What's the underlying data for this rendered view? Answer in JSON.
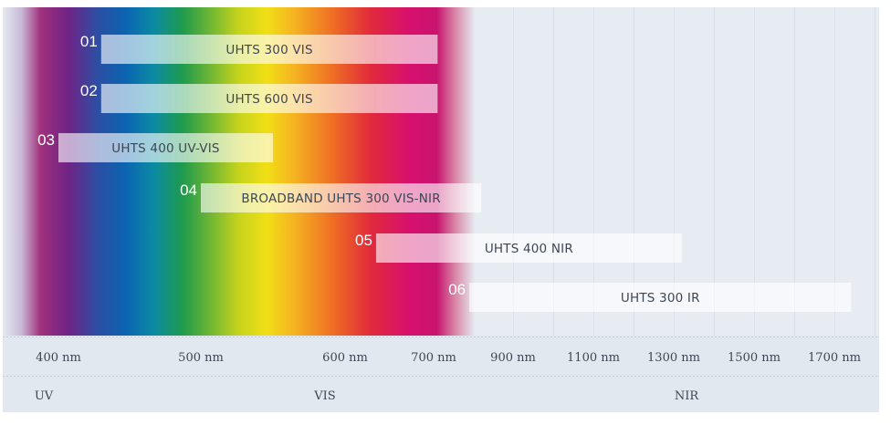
{
  "chart_data": {
    "type": "bar",
    "orientation": "horizontal-range",
    "x_ticks": [
      "400 nm",
      "500 nm",
      "600 nm",
      "700 nm",
      "900 nm",
      "1100 nm",
      "1300 nm",
      "1500 nm",
      "1700 nm"
    ],
    "regions": [
      {
        "label": "UV",
        "range_nm": [
          350,
          400
        ]
      },
      {
        "label": "VIS",
        "range_nm": [
          400,
          750
        ]
      },
      {
        "label": "NIR",
        "range_nm": [
          750,
          1750
        ]
      }
    ],
    "series": [
      {
        "number": "01",
        "name": "UHTS 300 VIS",
        "range_nm": [
          430,
          710
        ]
      },
      {
        "number": "02",
        "name": "UHTS 600 VIS",
        "range_nm": [
          430,
          710
        ]
      },
      {
        "number": "03",
        "name": "UHTS 400 UV-VIS",
        "range_nm": [
          400,
          550
        ]
      },
      {
        "number": "04",
        "name": "BROADBAND UHTS 300 VIS-NIR",
        "range_nm": [
          500,
          820
        ]
      },
      {
        "number": "05",
        "name": "UHTS 400 NIR",
        "range_nm": [
          635,
          1320
        ]
      },
      {
        "number": "06",
        "name": "UHTS 300 IR",
        "range_nm": [
          790,
          1720
        ]
      }
    ],
    "colors": {
      "plot_background": "#e5eaf1",
      "axis_band": "#e2e8f0",
      "text": "#3d4654",
      "number": "#ffffff"
    }
  }
}
